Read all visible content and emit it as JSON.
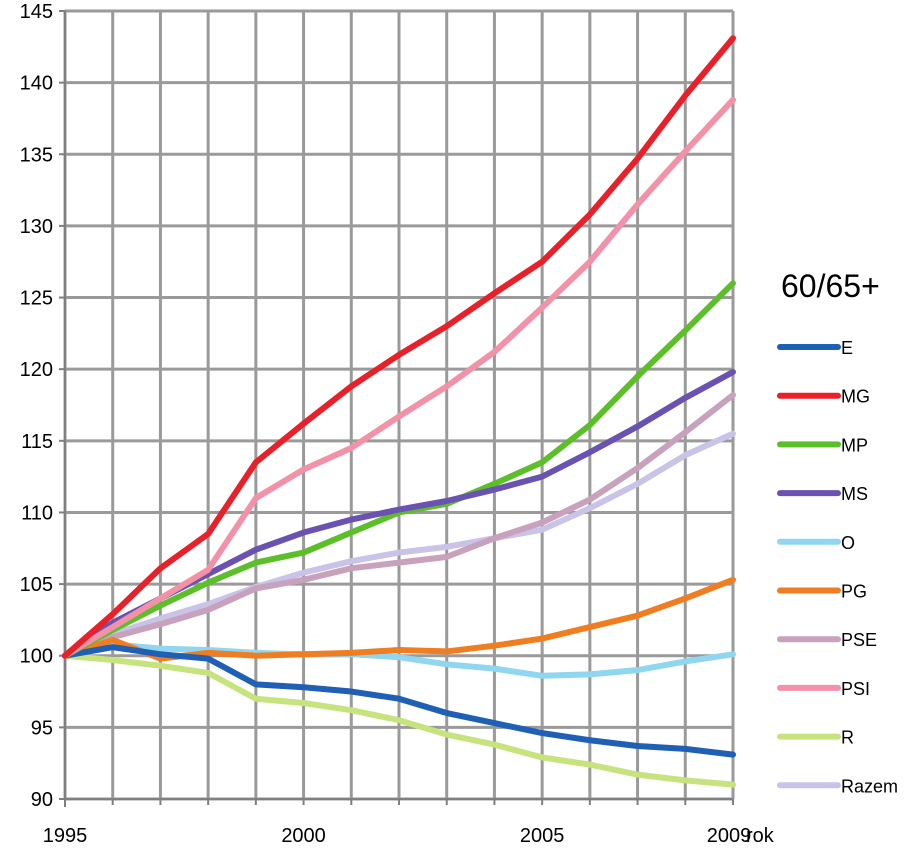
{
  "chart_data": {
    "type": "line",
    "title": "60/65+",
    "x": [
      1995,
      1996,
      1997,
      1998,
      1999,
      2000,
      2001,
      2002,
      2003,
      2004,
      2005,
      2006,
      2007,
      2008,
      2009
    ],
    "xlim": [
      1995,
      2009
    ],
    "ylim": [
      90,
      145
    ],
    "xticks": [
      {
        "value": 1995,
        "label": "1995"
      },
      {
        "value": 2000,
        "label": "2000"
      },
      {
        "value": 2005,
        "label": "2005"
      },
      {
        "value": 2009,
        "label": "2009"
      }
    ],
    "xunit": "rok",
    "yticks": [
      90,
      95,
      100,
      105,
      110,
      115,
      120,
      125,
      130,
      135,
      140,
      145
    ],
    "grid": true,
    "legend_position": "right",
    "series": [
      {
        "name": "E",
        "color": "#1f5fb4",
        "values": [
          100,
          100.6,
          100.1,
          99.8,
          98.0,
          97.8,
          97.5,
          97.0,
          96.0,
          95.3,
          94.6,
          94.1,
          93.7,
          93.5,
          93.1
        ]
      },
      {
        "name": "MG",
        "color": "#e8202a",
        "values": [
          100,
          102.9,
          106.1,
          108.5,
          113.5,
          116.2,
          118.8,
          121.0,
          123.0,
          125.3,
          127.5,
          130.8,
          134.7,
          139.1,
          143.1
        ]
      },
      {
        "name": "MP",
        "color": "#5cbf2a",
        "values": [
          100,
          101.8,
          103.5,
          105.1,
          106.5,
          107.2,
          108.6,
          110.0,
          110.6,
          112.0,
          113.5,
          116.1,
          119.5,
          122.7,
          126.0
        ]
      },
      {
        "name": "MS",
        "color": "#6a52b0",
        "values": [
          100,
          102.3,
          104.0,
          105.7,
          107.4,
          108.6,
          109.5,
          110.2,
          110.8,
          111.6,
          112.5,
          114.2,
          116.0,
          118.0,
          119.8
        ]
      },
      {
        "name": "O",
        "color": "#8fd6ee",
        "values": [
          100,
          100.8,
          100.5,
          100.4,
          100.2,
          100.1,
          100.1,
          99.9,
          99.4,
          99.1,
          98.6,
          98.7,
          99.0,
          99.6,
          100.1
        ]
      },
      {
        "name": "PG",
        "color": "#ef7d22",
        "values": [
          100,
          101.1,
          99.8,
          100.2,
          100.0,
          100.1,
          100.2,
          100.4,
          100.3,
          100.7,
          101.2,
          102.0,
          102.8,
          104.0,
          105.3
        ]
      },
      {
        "name": "PSE",
        "color": "#c8a1bd",
        "values": [
          100,
          101.3,
          102.2,
          103.2,
          104.7,
          105.3,
          106.1,
          106.5,
          106.9,
          108.2,
          109.3,
          110.9,
          113.1,
          115.6,
          118.2
        ]
      },
      {
        "name": "PSI",
        "color": "#f291a7",
        "values": [
          100,
          102.0,
          104.0,
          106.0,
          111.0,
          113.0,
          114.5,
          116.7,
          118.8,
          121.2,
          124.3,
          127.5,
          131.5,
          135.2,
          138.8
        ]
      },
      {
        "name": "R",
        "color": "#c6e37e",
        "values": [
          100,
          99.7,
          99.3,
          98.8,
          97.0,
          96.7,
          96.2,
          95.5,
          94.5,
          93.8,
          92.9,
          92.4,
          91.7,
          91.3,
          91.0
        ]
      },
      {
        "name": "Razem",
        "color": "#c9c3e8",
        "values": [
          100,
          101.5,
          102.6,
          103.6,
          104.8,
          105.8,
          106.6,
          107.2,
          107.6,
          108.2,
          108.8,
          110.3,
          112.0,
          114.0,
          115.5
        ]
      }
    ]
  }
}
